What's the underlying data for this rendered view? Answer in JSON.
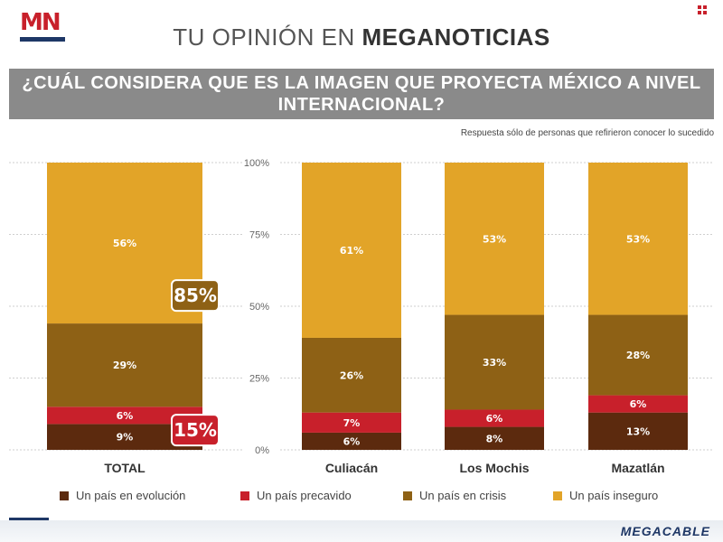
{
  "logo": {
    "text": "MN"
  },
  "header": {
    "prefix": "TU OPINIÓN EN ",
    "brand": "MEGANOTICIAS"
  },
  "question": "¿CUÁL CONSIDERA QUE ES LA IMAGEN QUE PROYECTA MÉXICO A NIVEL INTERNACIONAL?",
  "note": "Respuesta sólo de personas que refirieron conocer lo sucedido",
  "footer": {
    "brand": "MEGACABLE"
  },
  "colors": {
    "evolucion": "#5c2a0e",
    "precavido": "#c8202b",
    "crisis": "#8e6115",
    "inseguro": "#e2a428"
  },
  "chart_data": {
    "type": "bar",
    "stacked": true,
    "categories": [
      "TOTAL",
      "Culiacán",
      "Los Mochis",
      "Mazatlán"
    ],
    "series": [
      {
        "name": "Un país en evolución",
        "values": [
          9,
          6,
          8,
          13
        ]
      },
      {
        "name": "Un país precavido",
        "values": [
          6,
          7,
          6,
          6
        ]
      },
      {
        "name": "Un país en crisis",
        "values": [
          29,
          26,
          33,
          28
        ]
      },
      {
        "name": "Un país inseguro",
        "values": [
          56,
          61,
          53,
          53
        ]
      }
    ],
    "value_labels": [
      [
        "9%",
        "6%",
        "29%",
        "56%"
      ],
      [
        "6%",
        "7%",
        "26%",
        "61%"
      ],
      [
        "8%",
        "6%",
        "33%",
        "53%"
      ],
      [
        "13%",
        "6%",
        "28%",
        "53%"
      ]
    ],
    "ylim": [
      0,
      100
    ],
    "yticks": [
      "0%",
      "25%",
      "50%",
      "75%",
      "100%"
    ],
    "callouts": {
      "top": "85%",
      "bottom": "15%"
    },
    "legend_position": "bottom",
    "grid": true
  }
}
